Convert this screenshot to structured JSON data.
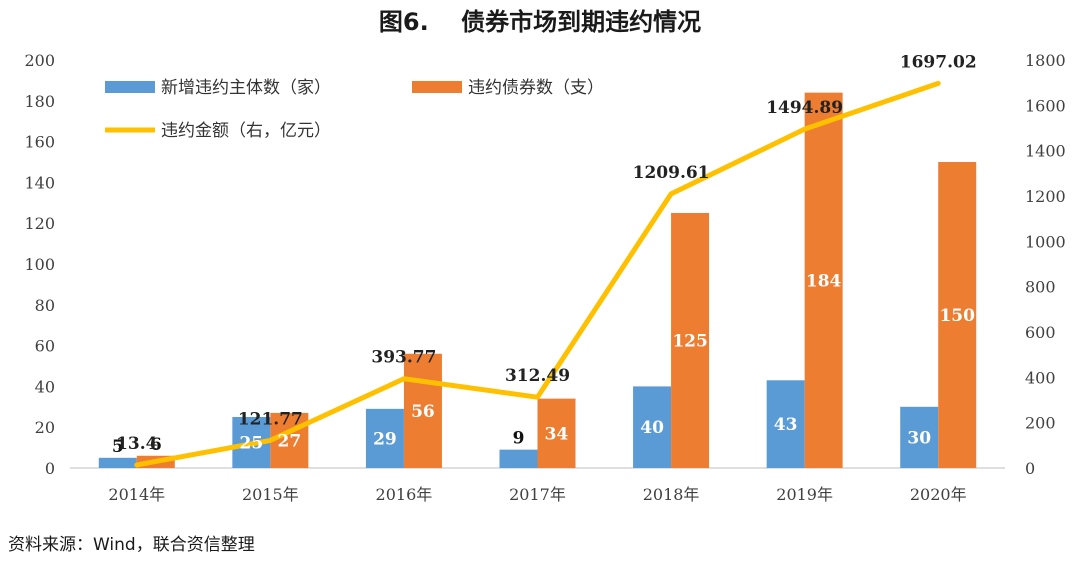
{
  "title": "图6.　 债券市场到期违约情况",
  "source": "资料来源：Wind，联合资信整理",
  "colors": {
    "blue": "#5b9bd5",
    "orange": "#ed7d31",
    "gold": "#ffc000"
  },
  "chart_data": {
    "type": "bar",
    "categories": [
      "2014年",
      "2015年",
      "2016年",
      "2017年",
      "2018年",
      "2019年",
      "2020年"
    ],
    "series": [
      {
        "name": "新增违约主体数（家）",
        "type": "bar",
        "axis": "left",
        "values": [
          5,
          25,
          29,
          9,
          40,
          43,
          30
        ],
        "labels": [
          "5",
          "25",
          "29",
          "9",
          "40",
          "43",
          "30"
        ]
      },
      {
        "name": "违约债券数（支）",
        "type": "bar",
        "axis": "left",
        "values": [
          6,
          27,
          56,
          34,
          125,
          184,
          150
        ],
        "labels": [
          "6",
          "27",
          "56",
          "34",
          "125",
          "184",
          "150"
        ]
      },
      {
        "name": "违约金额（右，亿元）",
        "type": "line",
        "axis": "right",
        "values": [
          13.4,
          121.77,
          393.77,
          312.49,
          1209.61,
          1494.89,
          1697.02
        ],
        "labels": [
          "13.4",
          "121.77",
          "393.77",
          "312.49",
          "1209.61",
          "1494.89",
          "1697.02"
        ]
      }
    ],
    "ylim_left": [
      0,
      200
    ],
    "yticks_left": [
      "0",
      "20",
      "40",
      "60",
      "80",
      "100",
      "120",
      "140",
      "160",
      "180",
      "200"
    ],
    "ylim_right": [
      0,
      1800
    ],
    "yticks_right": [
      "0",
      "200",
      "400",
      "600",
      "800",
      "1000",
      "1200",
      "1400",
      "1600",
      "1800"
    ],
    "grid": false,
    "legend_position": "top-left"
  }
}
